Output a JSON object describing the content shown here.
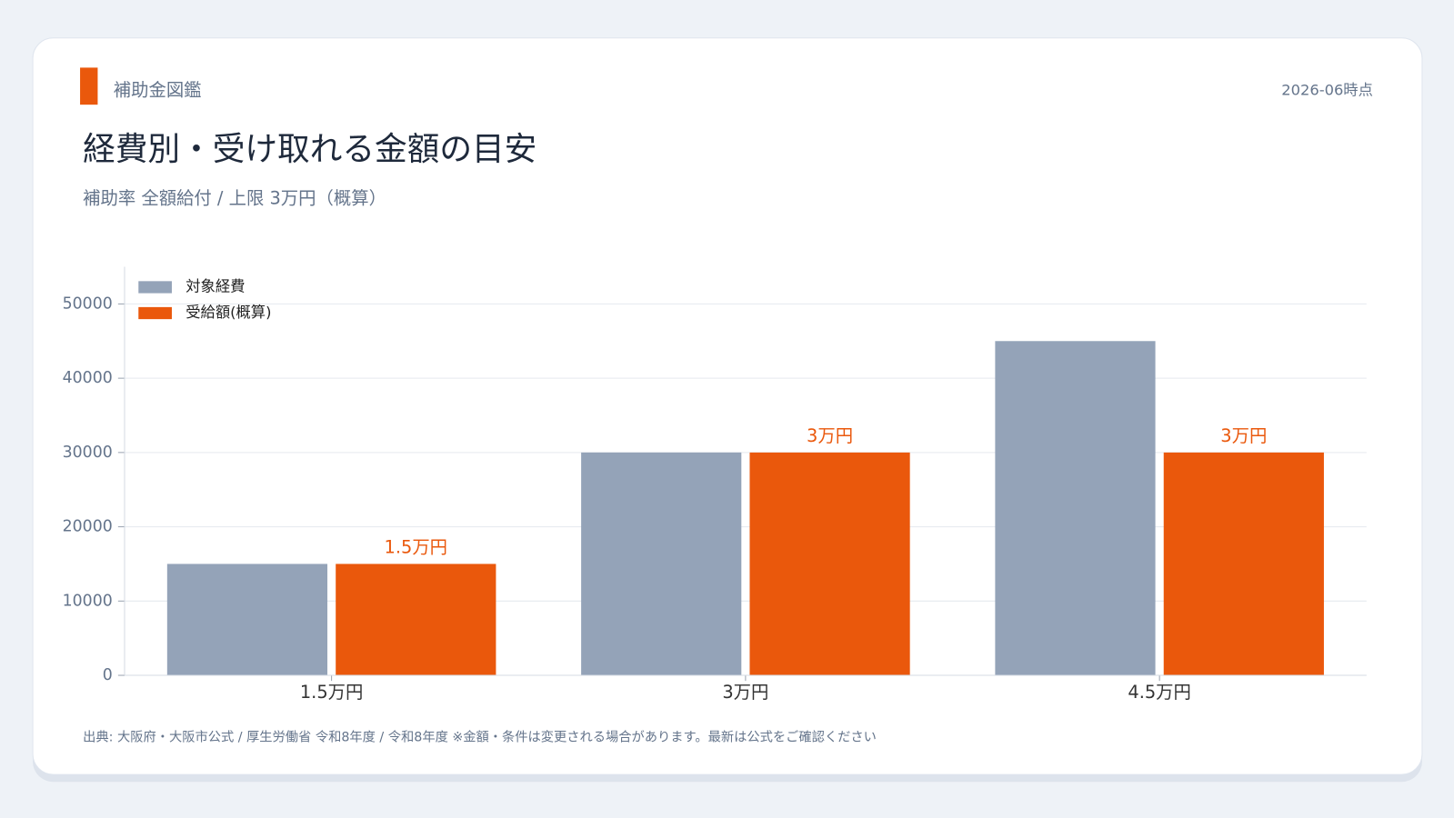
{
  "header": {
    "badge": "補助金図鑑",
    "date": "2026-06時点"
  },
  "chart_data": {
    "type": "bar",
    "title": "経費別・受け取れる金額の目安",
    "subtitle": "補助率 全額給付 / 上限 3万円（概算）",
    "categories": [
      "1.5万円",
      "3万円",
      "4.5万円"
    ],
    "series": [
      {
        "name": "対象経費",
        "color": "#94a3b8",
        "values": [
          15000,
          30000,
          45000
        ]
      },
      {
        "name": "受給額(概算)",
        "color": "#ea580c",
        "values": [
          15000,
          30000,
          30000
        ],
        "value_labels": [
          "1.5万円",
          "3万円",
          "3万円"
        ]
      }
    ],
    "ylim": [
      0,
      55000
    ],
    "yticks": [
      0,
      10000,
      20000,
      30000,
      40000,
      50000
    ],
    "grid": true,
    "legend": "top-left"
  },
  "footer": {
    "source": "出典: 大阪府・大阪市公式 / 厚生労働省 令和8年度 / 令和8年度 ※金額・条件は変更される場合があります。最新は公式をご確認ください"
  }
}
